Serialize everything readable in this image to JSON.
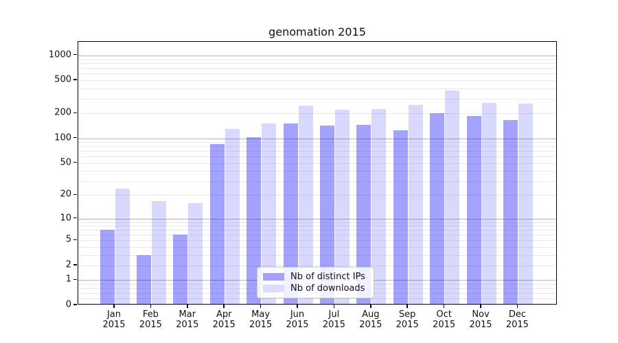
{
  "title": "genomation 2015",
  "legend": {
    "items": [
      {
        "label": "Nb of distinct IPs",
        "swatch_color": "#a3a3ff"
      },
      {
        "label": "Nb of downloads",
        "swatch_color": "#dcdcff"
      }
    ]
  },
  "colors": {
    "bar_distinct_ips": "rgba(0,0,255,0.36)",
    "bar_downloads": "rgba(0,0,255,0.15)",
    "major_gridline": "#b4b4b4",
    "minor_gridline": "#e9e9e9"
  },
  "y_axis": {
    "tick_values": [
      0,
      1,
      2,
      5,
      10,
      20,
      50,
      100,
      200,
      500,
      1000
    ]
  },
  "chart_data": {
    "type": "bar",
    "title": "genomation 2015",
    "categories": [
      "Jan 2015",
      "Feb 2015",
      "Mar 2015",
      "Apr 2015",
      "May 2015",
      "Jun 2015",
      "Jul 2015",
      "Aug 2015",
      "Sep 2015",
      "Oct 2015",
      "Nov 2015",
      "Dec 2015"
    ],
    "series": [
      {
        "name": "Nb of distinct IPs",
        "values": [
          7,
          3,
          6,
          85,
          104,
          150,
          143,
          146,
          124,
          200,
          187,
          165
        ]
      },
      {
        "name": "Nb of downloads",
        "values": [
          24,
          17,
          16,
          130,
          152,
          250,
          220,
          225,
          255,
          380,
          270,
          260
        ]
      }
    ],
    "xlabel": "",
    "ylabel": "",
    "yscale": "log10(1+x)",
    "ylim": [
      0,
      1450
    ],
    "yticks": [
      0,
      1,
      2,
      5,
      10,
      20,
      50,
      100,
      200,
      500,
      1000
    ],
    "grid": "horizontal major and minor gridlines",
    "legend_position": "inside lower center-right"
  }
}
